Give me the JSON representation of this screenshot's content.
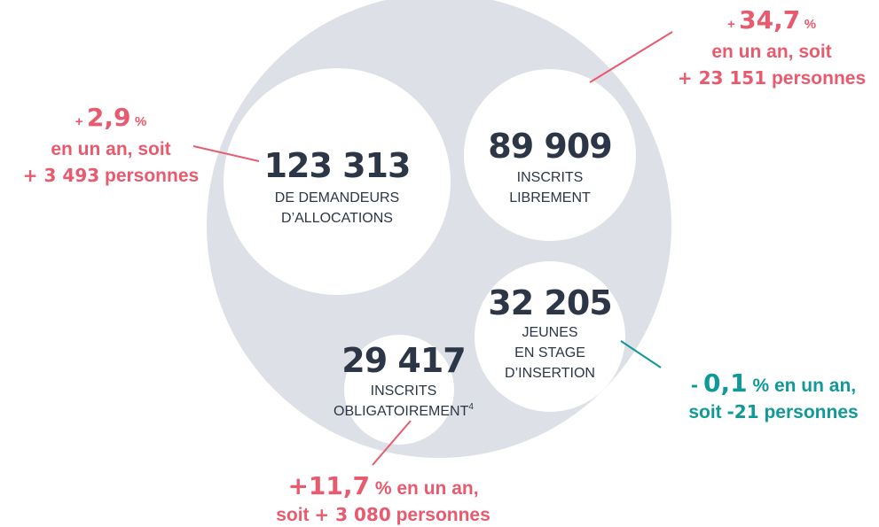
{
  "circles": [
    {
      "value": "123 313",
      "lines": [
        "DE DEMANDEURS",
        "D’ALLOCATIONS"
      ]
    },
    {
      "value": "89 909",
      "lines": [
        "INSCRITS",
        "LIBREMENT"
      ]
    },
    {
      "value": "32 205",
      "lines": [
        "JEUNES",
        "EN STAGE",
        "D’INSERTION"
      ]
    },
    {
      "value": "29 417",
      "lines": [
        "INSCRITS",
        "OBLIGATOIREMENT"
      ],
      "note": "4"
    }
  ],
  "annotations": [
    {
      "sign": "+",
      "rate": "34,7",
      "unit": "%",
      "text": "en un an, soit",
      "delta": "+ 23 151",
      "people": "personnes"
    },
    {
      "sign": "+",
      "rate": "2,9",
      "unit": "%",
      "text": "en un an, soit",
      "delta": "+ 3 493",
      "people": "personnes"
    },
    {
      "sign": "-",
      "rate": "0,1",
      "unit": "%",
      "text": "en un an,",
      "prefix": "soit",
      "delta": "-21",
      "people": "personnes"
    },
    {
      "sign": "+",
      "rate": "11,7",
      "unit": "%",
      "text": "en un an,",
      "prefix": "soit",
      "delta": "+ 3 080",
      "people": "personnes"
    }
  ]
}
